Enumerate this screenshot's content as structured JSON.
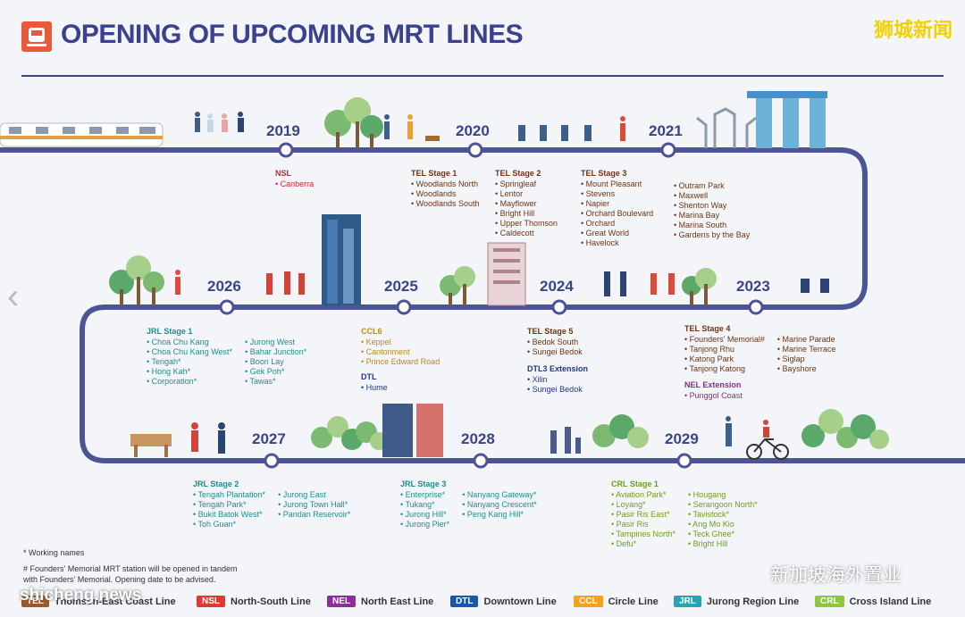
{
  "title": "OPENING OF UPCOMING MRT LINES",
  "watermark_top": "狮城新闻",
  "watermark_bottom": "新加坡海外置业",
  "watermark_site": "shicheng.news",
  "colors": {
    "track": "#4d5495",
    "NSL": "#e03a2f",
    "NEL": "#8e2f97",
    "DTL": "#1a57a8",
    "CCL": "#f3a21c",
    "JRL": "#26a4b0",
    "CRL": "#8dc640",
    "TEL": "#9b5a27"
  },
  "years": [
    "2019",
    "2020",
    "2021",
    "2023",
    "2024",
    "2025",
    "2026",
    "2027",
    "2028",
    "2029"
  ],
  "groups": {
    "nsl": {
      "title": "NSL",
      "stations": [
        "• Canberra"
      ]
    },
    "tel1": {
      "title": "TEL Stage 1",
      "stations": [
        "• Woodlands North",
        "• Woodlands",
        "• Woodlands South"
      ]
    },
    "tel2": {
      "title": "TEL Stage 2",
      "stations": [
        "• Springleaf",
        "• Lentor",
        "• Mayflower",
        "• Bright Hill",
        "• Upper Thomson",
        "• Caldecott"
      ]
    },
    "tel3": {
      "title": "TEL Stage 3",
      "stations": [
        "• Mount Pleasant",
        "• Stevens",
        "• Napier",
        "• Orchard Boulevard",
        "• Orchard",
        "• Great World",
        "• Havelock"
      ]
    },
    "tel3b": {
      "stations": [
        "• Outram Park",
        "• Maxwell",
        "• Shenton Way",
        "• Marina Bay",
        "• Marina South",
        "• Gardens by the Bay"
      ]
    },
    "jrl1": {
      "title": "JRL Stage 1",
      "col1": [
        "• Choa Chu Kang",
        "• Choa Chu Kang West*",
        "• Tengah*",
        "• Hong Kah*",
        "• Corporation*"
      ],
      "col2": [
        "• Jurong West",
        "• Bahar Junction*",
        "• Boon Lay",
        "• Gek Poh*",
        "• Tawas*"
      ]
    },
    "ccl6": {
      "title": "CCL6",
      "stations": [
        "• Keppel",
        "• Cantonment",
        "• Prince Edward Road"
      ]
    },
    "dtl": {
      "title": "DTL",
      "stations": [
        "• Hume"
      ]
    },
    "tel5": {
      "title": "TEL Stage 5",
      "stations": [
        "• Bedok South",
        "• Sungei Bedok"
      ]
    },
    "dtl3": {
      "title": "DTL3 Extension",
      "stations": [
        "• Xilin",
        "• Sungei Bedok"
      ]
    },
    "tel4": {
      "title": "TEL Stage 4",
      "col1": [
        "• Founders' Memorial#",
        "• Tanjong Rhu",
        "• Katong Park",
        "• Tanjong Katong"
      ],
      "col2": [
        "• Marine Parade",
        "• Marine Terrace",
        "• Siglap",
        "• Bayshore"
      ]
    },
    "nel": {
      "title": "NEL Extension",
      "stations": [
        "• Punggol Coast"
      ]
    },
    "jrl2": {
      "title": "JRL Stage 2",
      "col1": [
        "• Tengah Plantation*",
        "• Tengah Park*",
        "• Bukit Batok West*",
        "• Toh Guan*"
      ],
      "col2": [
        "• Jurong East",
        "• Jurong Town Hall*",
        "• Pandan Reservoir*"
      ]
    },
    "jrl3": {
      "title": "JRL Stage 3",
      "col1": [
        "• Enterprise*",
        "• Tukang*",
        "• Jurong Hill*",
        "• Jurong Pier*"
      ],
      "col2": [
        "• Nanyang Gateway*",
        "• Nanyang Crescent*",
        "• Peng Kang Hill*"
      ]
    },
    "crl1": {
      "title": "CRL Stage 1",
      "col1": [
        "• Aviation Park*",
        "• Loyang*",
        "• Pasir Ris East*",
        "• Pasir Ris",
        "• Tampines North*",
        "• Defu*"
      ],
      "col2": [
        "• Hougang",
        "• Serangoon North*",
        "• Tavistock*",
        "• Ang Mo Kio",
        "• Teck Ghee*",
        "• Bright Hill"
      ]
    }
  },
  "notes": [
    "* Working names",
    "# Founders' Memorial MRT station will be opened in tandem",
    "with Founders' Memorial. Opening date to be advised."
  ],
  "legend": [
    {
      "code": "TEL",
      "name": "Thomson-East Coast Line",
      "color": "#9b5a27"
    },
    {
      "code": "NSL",
      "name": "North-South Line",
      "color": "#e03a2f"
    },
    {
      "code": "NEL",
      "name": "North East Line",
      "color": "#8e2f97"
    },
    {
      "code": "DTL",
      "name": "Downtown Line",
      "color": "#1a57a8"
    },
    {
      "code": "CCL",
      "name": "Circle Line",
      "color": "#f3a21c"
    },
    {
      "code": "JRL",
      "name": "Jurong Region Line",
      "color": "#26a4b0"
    },
    {
      "code": "CRL",
      "name": "Cross Island Line",
      "color": "#8dc640"
    }
  ]
}
